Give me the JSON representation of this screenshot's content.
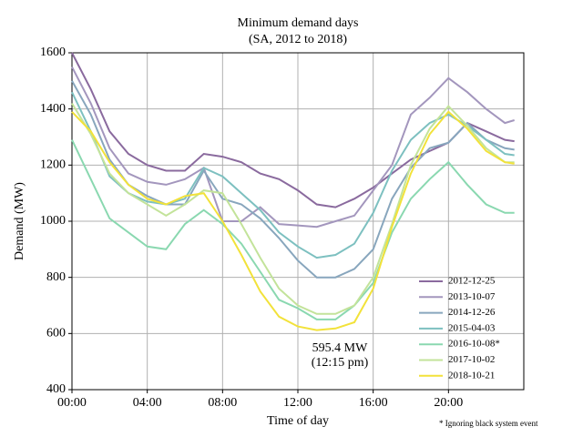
{
  "chart_data": {
    "type": "line",
    "title": "Minimum demand days",
    "subtitle": "(SA,  2012 to 2018)",
    "x_label": "Time of day",
    "y_label": "Demand (MW)",
    "annotation": [
      "595.4 MW",
      "(12:15 pm)"
    ],
    "footnote": "* Ignoring black system event",
    "x": [
      0,
      1,
      2,
      3,
      4,
      5,
      6,
      7,
      8,
      9,
      10,
      11,
      12,
      13,
      14,
      15,
      16,
      17,
      18,
      19,
      20,
      21,
      22,
      23,
      23.5
    ],
    "xlim": [
      0,
      24
    ],
    "xticks": [
      {
        "value": 0,
        "label": "00:00"
      },
      {
        "value": 4,
        "label": "04:00"
      },
      {
        "value": 8,
        "label": "08:00"
      },
      {
        "value": 12,
        "label": "12:00"
      },
      {
        "value": 16,
        "label": "16:00"
      },
      {
        "value": 20,
        "label": "20:00"
      }
    ],
    "ylim": [
      400,
      1600
    ],
    "yticks": [
      400,
      600,
      800,
      1000,
      1200,
      1400,
      1600
    ],
    "grid": true,
    "legend": "lower right",
    "series": [
      {
        "name": "2012-12-25",
        "color": "#8a6a9e",
        "values": [
          1600,
          1470,
          1320,
          1240,
          1200,
          1180,
          1180,
          1240,
          1230,
          1210,
          1170,
          1150,
          1110,
          1060,
          1050,
          1080,
          1120,
          1170,
          1220,
          1250,
          1280,
          1350,
          1320,
          1290,
          1285
        ]
      },
      {
        "name": "2013-10-07",
        "color": "#a396bd",
        "values": [
          1550,
          1420,
          1260,
          1170,
          1140,
          1130,
          1150,
          1190,
          1000,
          1000,
          1050,
          990,
          985,
          980,
          1000,
          1020,
          1110,
          1200,
          1380,
          1440,
          1510,
          1460,
          1400,
          1350,
          1360
        ]
      },
      {
        "name": "2014-12-26",
        "color": "#88a6bd",
        "values": [
          1500,
          1380,
          1220,
          1130,
          1090,
          1060,
          1060,
          1180,
          1080,
          1060,
          1010,
          940,
          860,
          800,
          800,
          830,
          900,
          1080,
          1190,
          1260,
          1280,
          1350,
          1290,
          1260,
          1255
        ]
      },
      {
        "name": "2015-04-03",
        "color": "#7dc0c0",
        "values": [
          1460,
          1320,
          1160,
          1100,
          1070,
          1060,
          1080,
          1190,
          1160,
          1100,
          1040,
          960,
          910,
          870,
          880,
          920,
          1030,
          1180,
          1290,
          1350,
          1380,
          1340,
          1290,
          1240,
          1235
        ]
      },
      {
        "name": "2016-10-08*",
        "color": "#8ad8b0",
        "values": [
          1290,
          1150,
          1010,
          960,
          910,
          900,
          990,
          1040,
          990,
          920,
          820,
          720,
          690,
          650,
          650,
          700,
          780,
          960,
          1080,
          1150,
          1210,
          1130,
          1060,
          1030,
          1030
        ]
      },
      {
        "name": "2017-10-02",
        "color": "#c3e39a",
        "values": [
          1420,
          1310,
          1170,
          1100,
          1060,
          1020,
          1060,
          1110,
          1100,
          990,
          870,
          760,
          700,
          670,
          670,
          700,
          800,
          990,
          1200,
          1330,
          1410,
          1340,
          1260,
          1210,
          1210
        ]
      },
      {
        "name": "2018-10-21",
        "color": "#f2e23a",
        "values": [
          1390,
          1320,
          1210,
          1130,
          1080,
          1060,
          1090,
          1100,
          1000,
          880,
          750,
          660,
          625,
          612,
          618,
          640,
          760,
          980,
          1170,
          1310,
          1390,
          1330,
          1250,
          1210,
          1205
        ]
      }
    ]
  }
}
